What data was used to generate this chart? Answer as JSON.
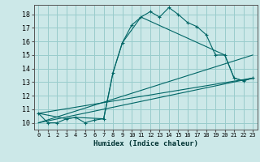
{
  "title": "",
  "xlabel": "Humidex (Indice chaleur)",
  "bg_color": "#cce8e8",
  "grid_color": "#99cccc",
  "line_color": "#006666",
  "xlim": [
    -0.5,
    23.5
  ],
  "ylim": [
    9.5,
    18.7
  ],
  "xticks": [
    0,
    1,
    2,
    3,
    4,
    5,
    6,
    7,
    8,
    9,
    10,
    11,
    12,
    13,
    14,
    15,
    16,
    17,
    18,
    19,
    20,
    21,
    22,
    23
  ],
  "yticks": [
    10,
    11,
    12,
    13,
    14,
    15,
    16,
    17,
    18
  ],
  "curve1_x": [
    0,
    1,
    2,
    3,
    4,
    5,
    6,
    7,
    8,
    9,
    10,
    11,
    12,
    13,
    14,
    15,
    16,
    17,
    18,
    19,
    20,
    21,
    22,
    23
  ],
  "curve1_y": [
    10.7,
    10.0,
    10.0,
    10.3,
    10.4,
    10.0,
    10.2,
    10.3,
    13.7,
    15.9,
    17.2,
    17.8,
    18.2,
    17.8,
    18.5,
    18.0,
    17.4,
    17.1,
    16.5,
    15.0,
    15.0,
    13.3,
    13.1,
    13.3
  ],
  "curve2_x": [
    0,
    3,
    4,
    7,
    8,
    9,
    11,
    20,
    21,
    22,
    23
  ],
  "curve2_y": [
    10.7,
    10.3,
    10.4,
    10.3,
    13.7,
    15.9,
    17.8,
    15.0,
    13.3,
    13.1,
    13.3
  ],
  "line1_x": [
    0,
    23
  ],
  "line1_y": [
    10.0,
    15.0
  ],
  "line2_x": [
    0,
    23
  ],
  "line2_y": [
    10.0,
    13.3
  ],
  "line3_x": [
    0,
    23
  ],
  "line3_y": [
    10.7,
    13.3
  ]
}
